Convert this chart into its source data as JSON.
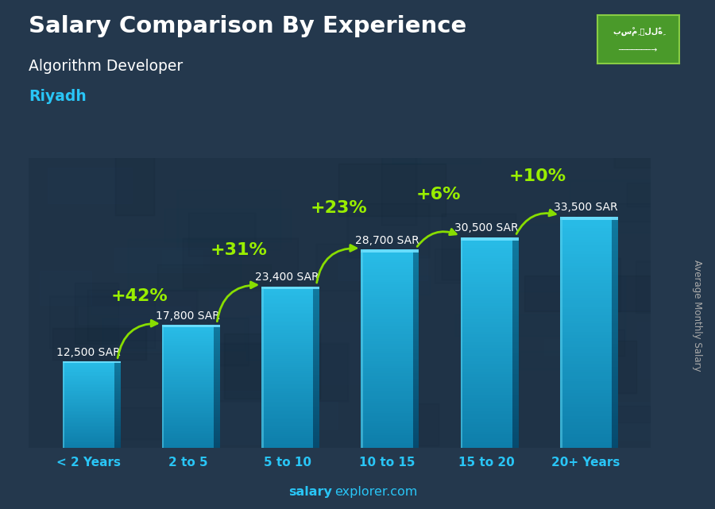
{
  "title": "Salary Comparison By Experience",
  "subtitle": "Algorithm Developer",
  "location": "Riyadh",
  "ylabel": "Average Monthly Salary",
  "categories": [
    "< 2 Years",
    "2 to 5",
    "5 to 10",
    "10 to 15",
    "15 to 20",
    "20+ Years"
  ],
  "values": [
    12500,
    17800,
    23400,
    28700,
    30500,
    33500
  ],
  "salary_labels": [
    "12,500 SAR",
    "17,800 SAR",
    "23,400 SAR",
    "28,700 SAR",
    "30,500 SAR",
    "33,500 SAR"
  ],
  "pct_labels": [
    "+42%",
    "+31%",
    "+23%",
    "+6%",
    "+10%"
  ],
  "bar_color_main": "#29bde8",
  "bar_color_dark": "#0e7eaa",
  "bar_color_light": "#55d5f5",
  "bg_color": "#1c2e3d",
  "title_color": "#ffffff",
  "subtitle_color": "#ffffff",
  "location_color": "#29c5f6",
  "salary_label_color": "#ffffff",
  "pct_color": "#99ee00",
  "arrow_color": "#88dd00",
  "xticklabel_color": "#29c5f6",
  "ylabel_color": "#aaaaaa",
  "footer_color_bold": "#29c5f6",
  "footer_color_normal": "#29c5f6",
  "ylim": [
    0,
    42000
  ],
  "bar_width": 0.52,
  "pct_fontsize": 16,
  "salary_fontsize": 10
}
